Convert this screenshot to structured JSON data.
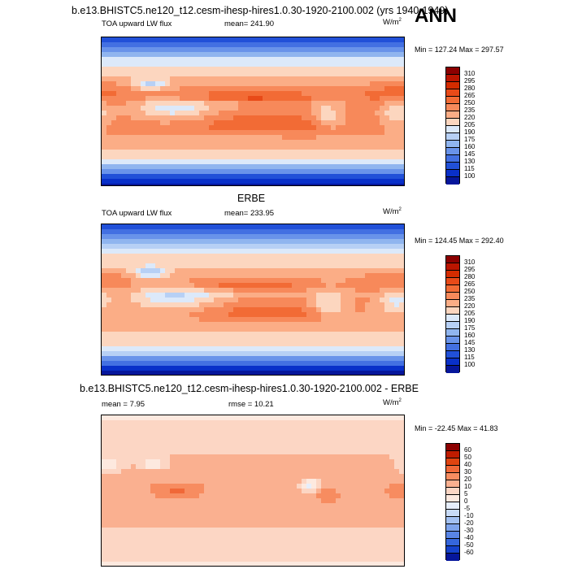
{
  "season": "ANN",
  "panels": [
    {
      "title": "b.e13.BHISTC5.ne120_t12.cesm-ihesp-hires1.0.30-1920-2100.002 (yrs 1940-1949)",
      "left_label": "TOA upward LW flux",
      "center_label": "mean= 241.90",
      "units_base": "W/m",
      "units_exp": "2",
      "minmax": "Min = 127.24 Max = 297.57",
      "levels": [
        "310",
        "295",
        "280",
        "265",
        "250",
        "235",
        "220",
        "205",
        "190",
        "175",
        "160",
        "145",
        "130",
        "115",
        "100"
      ]
    },
    {
      "title": "ERBE",
      "left_label": "TOA upward LW flux",
      "center_label": "mean= 233.95",
      "units_base": "W/m",
      "units_exp": "2",
      "minmax": "Min = 124.45 Max = 292.40",
      "levels": [
        "310",
        "295",
        "280",
        "265",
        "250",
        "235",
        "220",
        "205",
        "190",
        "175",
        "160",
        "145",
        "130",
        "115",
        "100"
      ]
    },
    {
      "title": "b.e13.BHISTC5.ne120_t12.cesm-ihesp-hires1.0.30-1920-2100.002 - ERBE",
      "left_label": "mean =  7.95",
      "center_label": "rmse =  10.21",
      "units_base": "W/m",
      "units_exp": "2",
      "minmax": "Min = -22.45 Max =  41.83",
      "levels": [
        "60",
        "50",
        "40",
        "30",
        "20",
        "10",
        "5",
        "0",
        "-5",
        "-10",
        "-20",
        "-30",
        "-40",
        "-50",
        "-60"
      ]
    }
  ],
  "colors": {
    "abs_scale": [
      "#8c0000",
      "#bb1500",
      "#d42c00",
      "#e84a18",
      "#f26b35",
      "#f7895a",
      "#fbad86",
      "#fcd6bf",
      "#dce9fa",
      "#b7d0f5",
      "#90b5ef",
      "#6993ea",
      "#4370e2",
      "#2150d8",
      "#0930c9",
      "#06169b"
    ],
    "diff_scale": [
      "#8c0000",
      "#c01c00",
      "#e04410",
      "#f06838",
      "#f78c60",
      "#fab090",
      "#fcd6c4",
      "#fde9df",
      "#e6eefb",
      "#c8dbf7",
      "#a3c1f2",
      "#7ea4ec",
      "#5985e5",
      "#3566dc",
      "#1542cc",
      "#06169b"
    ]
  },
  "chart_data": [
    {
      "type": "heatmap",
      "title": "b.e13.BHISTC5.ne120_t12.cesm-ihesp-hires1.0.30-1920-2100.002 (yrs 1940-1949)",
      "variable": "TOA upward LW flux",
      "units": "W/m2",
      "mean": 241.9,
      "min": 127.24,
      "max": 297.57,
      "contour_levels": [
        100,
        115,
        130,
        145,
        160,
        175,
        190,
        205,
        220,
        235,
        250,
        265,
        280,
        295,
        310
      ]
    },
    {
      "type": "heatmap",
      "title": "ERBE",
      "variable": "TOA upward LW flux",
      "units": "W/m2",
      "mean": 233.95,
      "min": 124.45,
      "max": 292.4,
      "contour_levels": [
        100,
        115,
        130,
        145,
        160,
        175,
        190,
        205,
        220,
        235,
        250,
        265,
        280,
        295,
        310
      ]
    },
    {
      "type": "heatmap",
      "title": "b.e13.BHISTC5.ne120_t12.cesm-ihesp-hires1.0.30-1920-2100.002 - ERBE",
      "units": "W/m2",
      "mean": 7.95,
      "rmse": 10.21,
      "min": -22.45,
      "max": 41.83,
      "contour_levels": [
        -60,
        -50,
        -40,
        -30,
        -20,
        -10,
        -5,
        0,
        5,
        10,
        20,
        30,
        40,
        50,
        60
      ]
    }
  ]
}
